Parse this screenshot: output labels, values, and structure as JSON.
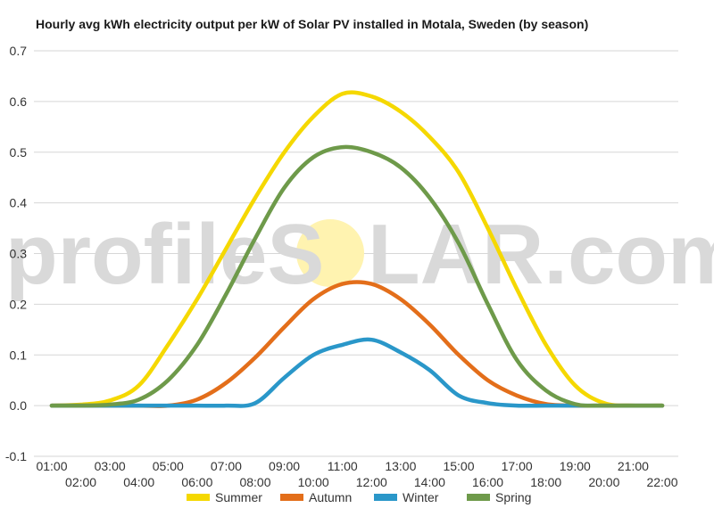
{
  "chart_data": {
    "type": "line",
    "title": "Hourly avg kWh electricity output per kW of Solar PV installed in Motala, Sweden (by season)",
    "xlabel": "",
    "ylabel": "",
    "ylim": [
      -0.1,
      0.7
    ],
    "yticks": [
      "0.7",
      "0.6",
      "0.5",
      "0.4",
      "0.3",
      "0.2",
      "0.1",
      "0.0",
      "-0.1"
    ],
    "ytick_values": [
      0.7,
      0.6,
      0.5,
      0.4,
      0.3,
      0.2,
      0.1,
      0.0,
      -0.1
    ],
    "grid": true,
    "legend_position": "bottom",
    "x": [
      "01:00",
      "02:00",
      "03:00",
      "04:00",
      "05:00",
      "06:00",
      "07:00",
      "08:00",
      "09:00",
      "10:00",
      "11:00",
      "12:00",
      "13:00",
      "14:00",
      "15:00",
      "16:00",
      "17:00",
      "18:00",
      "19:00",
      "20:00",
      "21:00",
      "22:00"
    ],
    "series": [
      {
        "name": "Summer",
        "color": "#f5d800",
        "values": [
          0.0,
          0.002,
          0.01,
          0.04,
          0.12,
          0.21,
          0.31,
          0.41,
          0.5,
          0.57,
          0.615,
          0.61,
          0.58,
          0.53,
          0.46,
          0.35,
          0.23,
          0.12,
          0.04,
          0.005,
          0.0,
          0.0
        ]
      },
      {
        "name": "Autumn",
        "color": "#e36e1a",
        "values": [
          0.0,
          0.0,
          0.0,
          0.0,
          0.0,
          0.012,
          0.045,
          0.095,
          0.155,
          0.21,
          0.24,
          0.24,
          0.21,
          0.16,
          0.1,
          0.05,
          0.02,
          0.003,
          0.0,
          0.0,
          0.0,
          0.0
        ]
      },
      {
        "name": "Winter",
        "color": "#2a97c9",
        "values": [
          0.0,
          0.0,
          0.0,
          0.0,
          0.0,
          0.0,
          0.0,
          0.005,
          0.055,
          0.1,
          0.12,
          0.13,
          0.105,
          0.07,
          0.02,
          0.005,
          0.0,
          0.0,
          0.0,
          0.0,
          0.0,
          0.0
        ]
      },
      {
        "name": "Spring",
        "color": "#6e9a4a",
        "values": [
          0.0,
          0.0,
          0.002,
          0.012,
          0.05,
          0.12,
          0.22,
          0.33,
          0.43,
          0.49,
          0.51,
          0.5,
          0.47,
          0.41,
          0.32,
          0.2,
          0.09,
          0.03,
          0.003,
          0.0,
          0.0,
          0.0
        ]
      }
    ]
  },
  "watermark": {
    "text_left": "profileS",
    "text_right": "LAR.com",
    "sun_color": "#fff3b0"
  }
}
